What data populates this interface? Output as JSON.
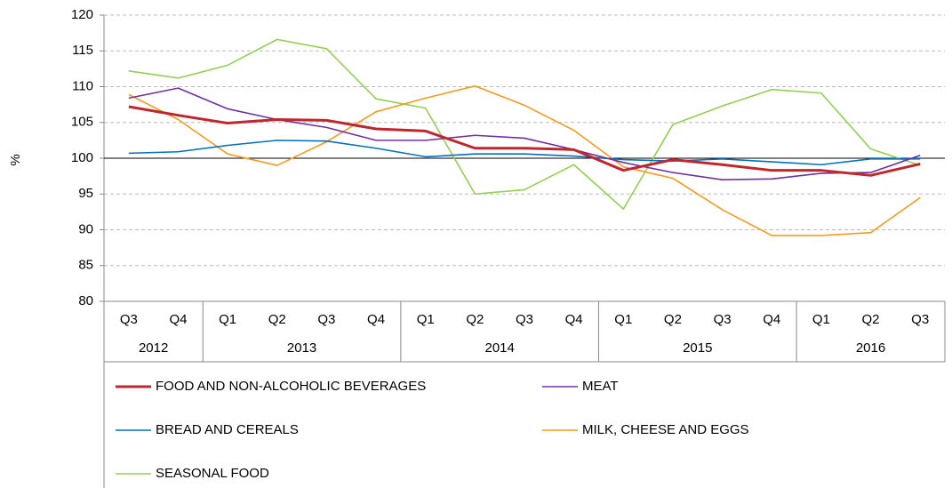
{
  "chart_data": {
    "type": "line",
    "y_label": "%",
    "groups": [
      {
        "name": "2012",
        "categories": [
          "Q3",
          "Q4"
        ]
      },
      {
        "name": "2013",
        "categories": [
          "Q1",
          "Q2",
          "Q3",
          "Q4"
        ]
      },
      {
        "name": "2014",
        "categories": [
          "Q1",
          "Q2",
          "Q3",
          "Q4"
        ]
      },
      {
        "name": "2015",
        "categories": [
          "Q1",
          "Q2",
          "Q3",
          "Q4"
        ]
      },
      {
        "name": "2016",
        "categories": [
          "Q1",
          "Q2",
          "Q3"
        ]
      }
    ],
    "ylim": [
      80,
      120
    ],
    "yticks": [
      80,
      85,
      90,
      95,
      100,
      105,
      110,
      115,
      120
    ],
    "reference_line": 100,
    "grid": true,
    "series": [
      {
        "name": "FOOD AND NON-ALCOHOLIC BEVERAGES",
        "color": "#c0272d",
        "values": [
          107.2,
          106.0,
          104.9,
          105.4,
          105.3,
          104.1,
          103.8,
          101.4,
          101.4,
          101.2,
          98.3,
          99.8,
          99.1,
          98.3,
          98.3,
          97.6,
          99.2
        ]
      },
      {
        "name": "MEAT",
        "color": "#7030a0",
        "values": [
          108.4,
          109.8,
          106.9,
          105.4,
          104.3,
          102.5,
          102.5,
          103.2,
          102.8,
          101.2,
          99.4,
          98.0,
          97.0,
          97.1,
          97.9,
          98.0,
          100.4
        ]
      },
      {
        "name": "BREAD AND CEREALS",
        "color": "#0070c0",
        "values": [
          100.7,
          100.9,
          101.8,
          102.5,
          102.4,
          101.4,
          100.2,
          100.6,
          100.6,
          100.3,
          99.8,
          99.6,
          99.9,
          99.5,
          99.1,
          99.9,
          99.9
        ]
      },
      {
        "name": "MILK, CHEESE AND EGGS",
        "color": "#f79a1e",
        "values": [
          108.9,
          105.4,
          100.6,
          99.0,
          102.3,
          106.5,
          108.4,
          110.1,
          107.4,
          103.9,
          98.8,
          97.2,
          92.8,
          89.2,
          89.2,
          89.6,
          94.5
        ]
      },
      {
        "name": "SEASONAL FOOD",
        "color": "#92d050",
        "values": [
          112.2,
          111.2,
          113.0,
          116.6,
          115.3,
          108.3,
          107.0,
          95.0,
          95.6,
          99.1,
          92.9,
          104.7,
          107.3,
          109.6,
          109.1,
          101.3,
          99.0
        ]
      }
    ]
  }
}
